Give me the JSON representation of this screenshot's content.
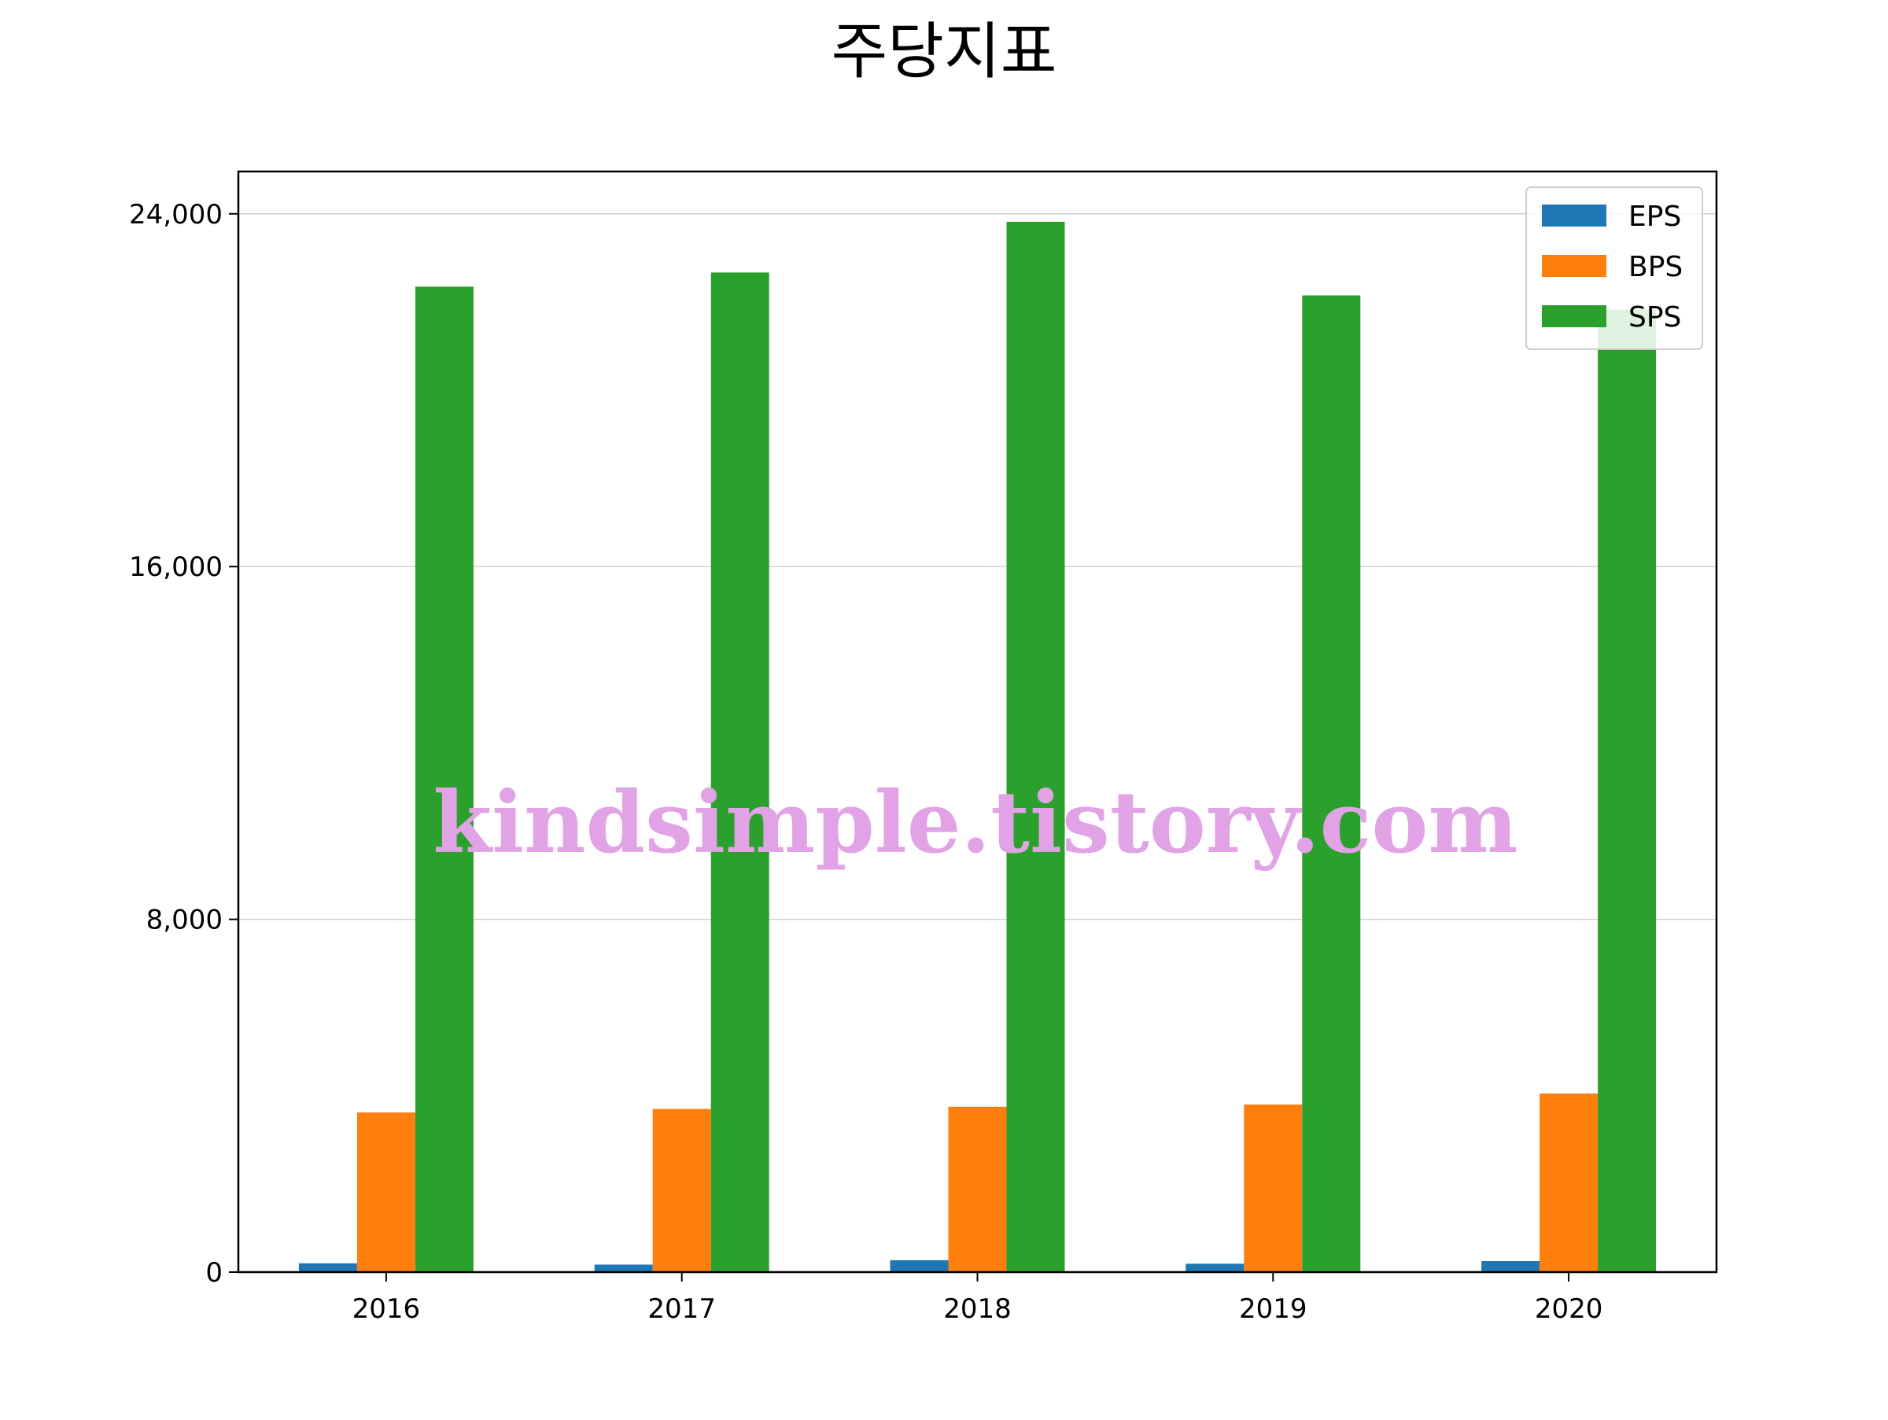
{
  "chart_data": {
    "type": "bar",
    "title": "주당지표",
    "xlabel": "",
    "ylabel": "",
    "categories": [
      "2016",
      "2017",
      "2018",
      "2019",
      "2020"
    ],
    "series": [
      {
        "name": "EPS",
        "color": "#1f77b4",
        "values": [
          200,
          170,
          270,
          190,
          250
        ]
      },
      {
        "name": "BPS",
        "color": "#ff7f0e",
        "values": [
          3620,
          3700,
          3750,
          3800,
          4050
        ]
      },
      {
        "name": "SPS",
        "color": "#2ca02c",
        "values": [
          22350,
          22670,
          23820,
          22150,
          21830
        ]
      }
    ],
    "ylim": [
      0,
      24960
    ],
    "yticks": [
      0,
      8000,
      16000,
      24000
    ],
    "ytick_labels": [
      "0",
      "8,000",
      "16,000",
      "24,000"
    ],
    "grid": "horizontal",
    "legend_position": "top-right",
    "watermark": "kindsimple.tistory.com"
  }
}
